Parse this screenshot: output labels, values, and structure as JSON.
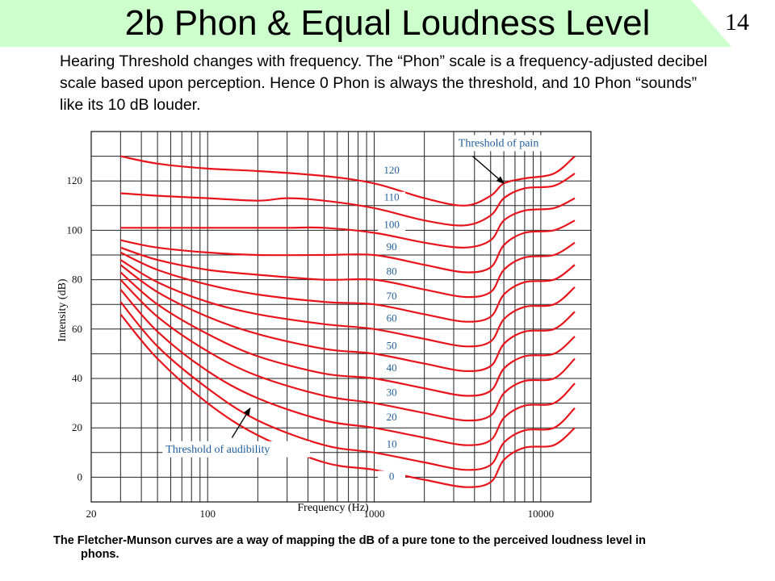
{
  "slide": {
    "title": "2b  Phon & Equal Loudness Level",
    "number": "14",
    "banner_color": "#ccffcc",
    "intro": "Hearing Threshold changes with frequency.  The “Phon” scale is a frequency-adjusted decibel scale based upon perception.  Hence 0 Phon is always the threshold, and 10 Phon “sounds” like its 10 dB louder.",
    "caption": "The Fletcher-Munson curves are a way of mapping the dB of a pure tone to the perceived loudness level in phons."
  },
  "chart_data": {
    "type": "line",
    "xscale": "log",
    "xlim": [
      20,
      20000
    ],
    "ylim": [
      -10,
      140
    ],
    "xlabel": "Frequency (Hz)",
    "ylabel": "Intensity (dB)",
    "xticks": [
      {
        "value": 20,
        "label": "20"
      },
      {
        "value": 100,
        "label": "100"
      },
      {
        "value": 1000,
        "label": "1000"
      },
      {
        "value": 10000,
        "label": "10000"
      }
    ],
    "yticks": [
      {
        "value": 0,
        "label": "0"
      },
      {
        "value": 20,
        "label": "20"
      },
      {
        "value": 40,
        "label": "40"
      },
      {
        "value": 60,
        "label": "60"
      },
      {
        "value": 80,
        "label": "80"
      },
      {
        "value": 100,
        "label": "100"
      },
      {
        "value": 120,
        "label": "120"
      }
    ],
    "grid": true,
    "line_color": "#e8141c",
    "label_color": "#1f5f9a",
    "series": [
      {
        "name": "0",
        "label_at": [
          1100,
          -1
        ],
        "points": [
          [
            30,
            66
          ],
          [
            50,
            48
          ],
          [
            100,
            30
          ],
          [
            200,
            17
          ],
          [
            500,
            6
          ],
          [
            1000,
            3
          ],
          [
            2000,
            -1
          ],
          [
            3500,
            -4
          ],
          [
            5000,
            -2
          ],
          [
            6000,
            7
          ],
          [
            8000,
            12
          ],
          [
            12000,
            13
          ],
          [
            16000,
            20
          ]
        ]
      },
      {
        "name": "10",
        "label_at": [
          1100,
          12
        ],
        "points": [
          [
            30,
            71
          ],
          [
            50,
            53
          ],
          [
            100,
            36
          ],
          [
            200,
            23
          ],
          [
            500,
            13
          ],
          [
            1000,
            10
          ],
          [
            2000,
            6
          ],
          [
            3500,
            3
          ],
          [
            5000,
            5
          ],
          [
            6000,
            14
          ],
          [
            8000,
            19
          ],
          [
            12000,
            20
          ],
          [
            16000,
            28
          ]
        ]
      },
      {
        "name": "20",
        "label_at": [
          1100,
          23
        ],
        "points": [
          [
            30,
            76
          ],
          [
            50,
            59
          ],
          [
            100,
            43
          ],
          [
            200,
            32
          ],
          [
            500,
            23
          ],
          [
            1000,
            20
          ],
          [
            2000,
            16
          ],
          [
            3500,
            13
          ],
          [
            5000,
            15
          ],
          [
            6000,
            24
          ],
          [
            8000,
            29
          ],
          [
            12000,
            30
          ],
          [
            16000,
            38
          ]
        ]
      },
      {
        "name": "30",
        "label_at": [
          1100,
          33
        ],
        "points": [
          [
            30,
            80
          ],
          [
            50,
            65
          ],
          [
            100,
            51
          ],
          [
            200,
            41
          ],
          [
            500,
            33
          ],
          [
            1000,
            30
          ],
          [
            2000,
            26
          ],
          [
            3500,
            23
          ],
          [
            5000,
            25
          ],
          [
            6000,
            34
          ],
          [
            8000,
            39
          ],
          [
            12000,
            40
          ],
          [
            16000,
            48
          ]
        ]
      },
      {
        "name": "40",
        "label_at": [
          1100,
          43
        ],
        "points": [
          [
            30,
            83
          ],
          [
            50,
            70
          ],
          [
            100,
            58
          ],
          [
            200,
            49
          ],
          [
            500,
            42
          ],
          [
            1000,
            40
          ],
          [
            2000,
            36
          ],
          [
            3500,
            33
          ],
          [
            5000,
            35
          ],
          [
            6000,
            44
          ],
          [
            8000,
            49
          ],
          [
            12000,
            50
          ],
          [
            16000,
            57
          ]
        ]
      },
      {
        "name": "50",
        "label_at": [
          1100,
          52
        ],
        "points": [
          [
            30,
            86
          ],
          [
            50,
            75
          ],
          [
            100,
            65
          ],
          [
            200,
            58
          ],
          [
            500,
            52
          ],
          [
            1000,
            50
          ],
          [
            2000,
            46
          ],
          [
            3500,
            43
          ],
          [
            5000,
            45
          ],
          [
            6000,
            54
          ],
          [
            8000,
            59
          ],
          [
            12000,
            60
          ],
          [
            16000,
            67
          ]
        ]
      },
      {
        "name": "60",
        "label_at": [
          1100,
          63
        ],
        "points": [
          [
            30,
            88
          ],
          [
            50,
            79
          ],
          [
            100,
            71
          ],
          [
            200,
            66
          ],
          [
            500,
            62
          ],
          [
            1000,
            60
          ],
          [
            2000,
            56
          ],
          [
            3500,
            53
          ],
          [
            5000,
            55
          ],
          [
            6000,
            64
          ],
          [
            8000,
            69
          ],
          [
            12000,
            70
          ],
          [
            16000,
            77
          ]
        ]
      },
      {
        "name": "70",
        "label_at": [
          1100,
          72
        ],
        "points": [
          [
            30,
            91
          ],
          [
            50,
            84
          ],
          [
            100,
            78
          ],
          [
            200,
            74
          ],
          [
            500,
            71
          ],
          [
            1000,
            70
          ],
          [
            2000,
            66
          ],
          [
            3500,
            63
          ],
          [
            5000,
            65
          ],
          [
            6000,
            74
          ],
          [
            8000,
            79
          ],
          [
            12000,
            80
          ],
          [
            16000,
            86
          ]
        ]
      },
      {
        "name": "80",
        "label_at": [
          1100,
          82
        ],
        "points": [
          [
            30,
            93
          ],
          [
            50,
            88
          ],
          [
            100,
            84
          ],
          [
            200,
            82
          ],
          [
            500,
            80
          ],
          [
            1000,
            80
          ],
          [
            2000,
            76
          ],
          [
            3500,
            73
          ],
          [
            5000,
            75
          ],
          [
            6000,
            84
          ],
          [
            8000,
            89
          ],
          [
            12000,
            90
          ],
          [
            16000,
            95
          ]
        ]
      },
      {
        "name": "90",
        "label_at": [
          1100,
          92
        ],
        "points": [
          [
            30,
            96
          ],
          [
            50,
            93
          ],
          [
            100,
            91
          ],
          [
            200,
            90
          ],
          [
            500,
            90
          ],
          [
            1000,
            90
          ],
          [
            2000,
            86
          ],
          [
            3500,
            83
          ],
          [
            5000,
            85
          ],
          [
            6000,
            94
          ],
          [
            8000,
            99
          ],
          [
            12000,
            100
          ],
          [
            16000,
            104
          ]
        ]
      },
      {
        "name": "100",
        "label_at": [
          1100,
          101
        ],
        "points": [
          [
            30,
            101
          ],
          [
            50,
            101
          ],
          [
            100,
            101
          ],
          [
            200,
            101
          ],
          [
            300,
            101
          ],
          [
            500,
            101
          ],
          [
            1000,
            99
          ],
          [
            2000,
            95
          ],
          [
            3500,
            93
          ],
          [
            5000,
            96
          ],
          [
            6000,
            104
          ],
          [
            8000,
            108
          ],
          [
            12000,
            109
          ],
          [
            16000,
            113
          ]
        ]
      },
      {
        "name": "110",
        "label_at": [
          1100,
          112
        ],
        "points": [
          [
            30,
            115
          ],
          [
            50,
            114
          ],
          [
            100,
            113
          ],
          [
            200,
            112
          ],
          [
            300,
            113
          ],
          [
            500,
            112
          ],
          [
            1000,
            109
          ],
          [
            2000,
            104
          ],
          [
            3500,
            102
          ],
          [
            5000,
            106
          ],
          [
            6000,
            113
          ],
          [
            8000,
            117
          ],
          [
            12000,
            118
          ],
          [
            16000,
            123
          ]
        ]
      },
      {
        "name": "120",
        "label_at": [
          1100,
          123
        ],
        "points": [
          [
            30,
            130
          ],
          [
            50,
            127
          ],
          [
            100,
            125
          ],
          [
            200,
            124
          ],
          [
            500,
            122
          ],
          [
            1000,
            119
          ],
          [
            2000,
            113
          ],
          [
            3500,
            110
          ],
          [
            5000,
            114
          ],
          [
            6000,
            119
          ],
          [
            8000,
            121
          ],
          [
            12000,
            123
          ],
          [
            16000,
            130
          ]
        ]
      }
    ],
    "annotations": [
      {
        "text": "Threshold of pain",
        "box_at": [
          3200,
          134
        ],
        "arrow_from": [
          3900,
          130
        ],
        "arrow_to": [
          6000,
          119
        ]
      },
      {
        "text": "Threshold of audibility",
        "box_at": [
          56,
          10
        ],
        "arrow_from": [
          140,
          16
        ],
        "arrow_to": [
          180,
          28
        ]
      }
    ]
  }
}
